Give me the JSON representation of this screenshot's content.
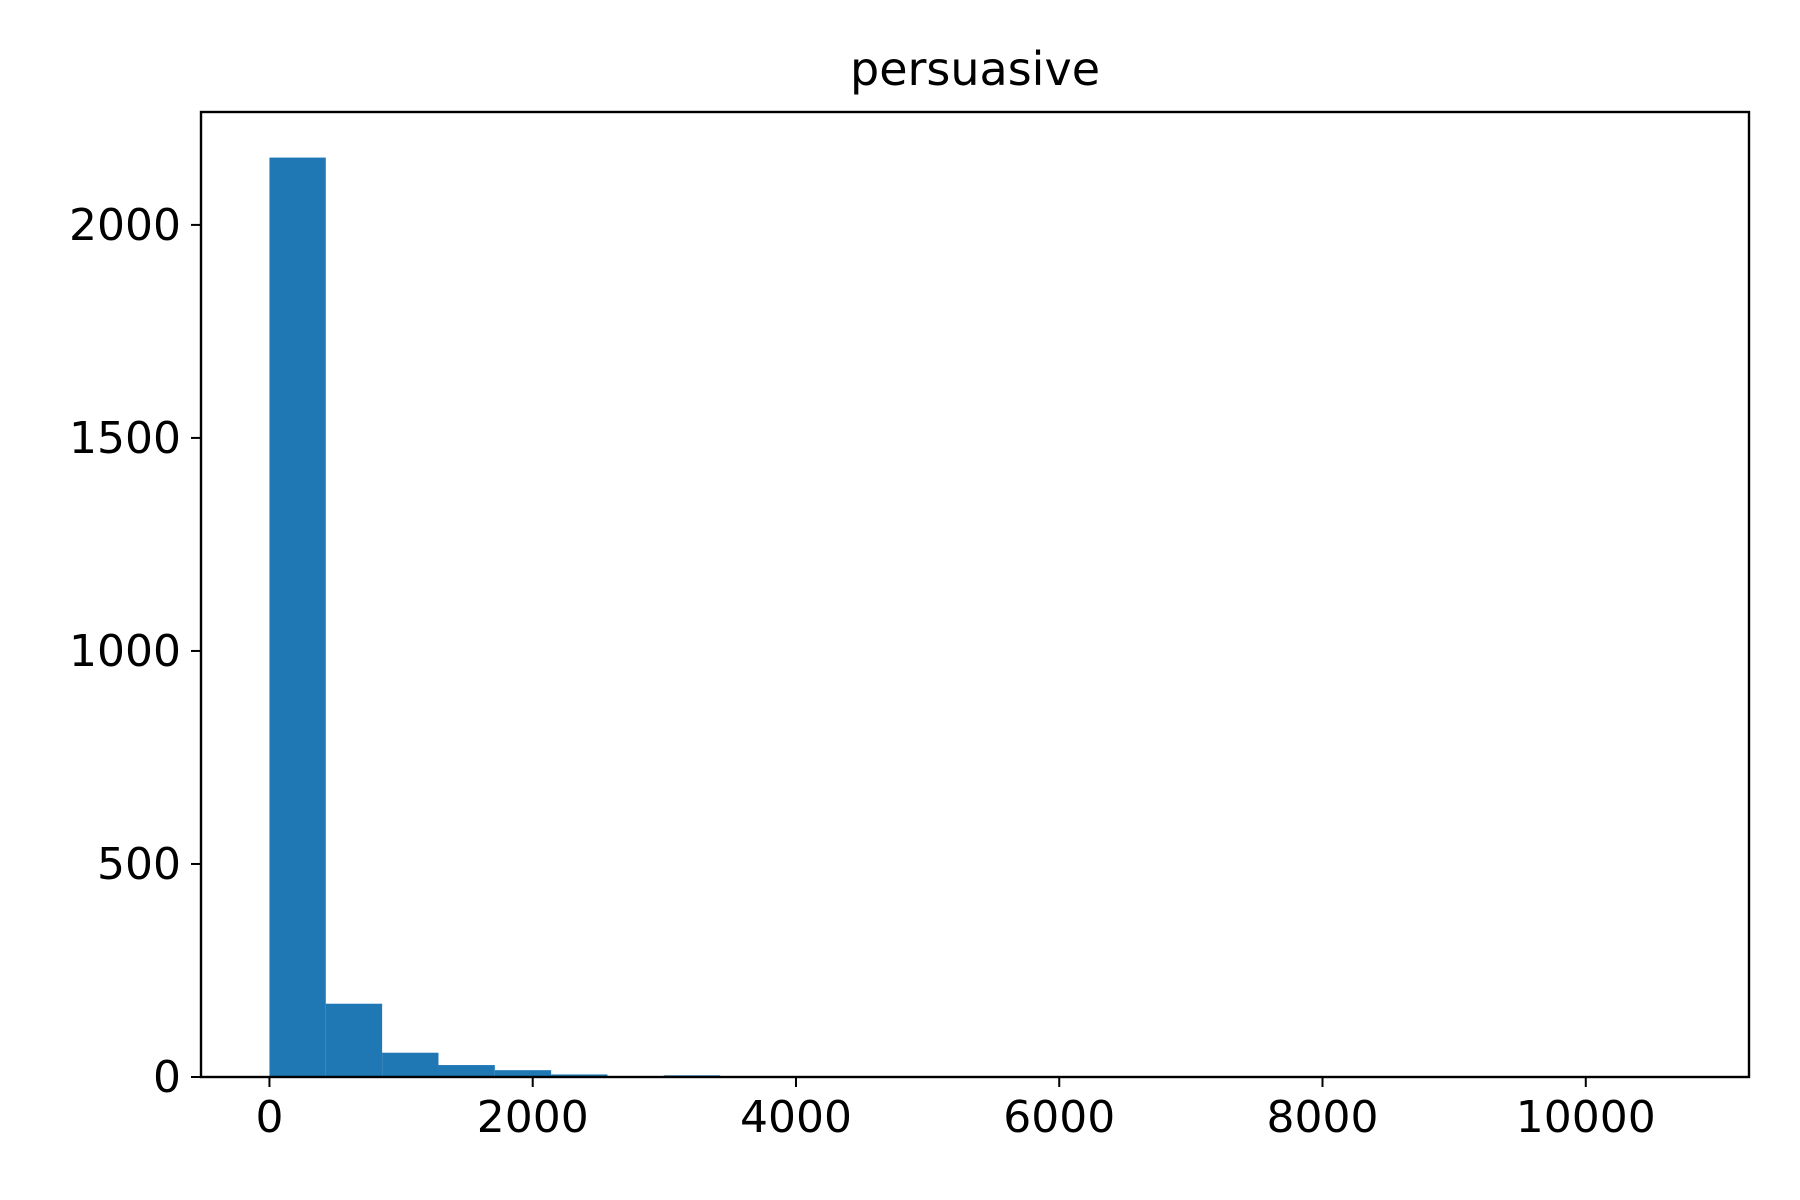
{
  "chart_data": {
    "type": "bar",
    "title": "persuasive",
    "xlabel": "",
    "ylabel": "",
    "bar_color": "#1f77b4",
    "xlim": [
      -520,
      11240
    ],
    "ylim": [
      0,
      2265
    ],
    "x_ticks": [
      0,
      2000,
      4000,
      6000,
      8000,
      10000
    ],
    "x_tick_labels": [
      "0",
      "2000",
      "4000",
      "6000",
      "8000",
      "10000"
    ],
    "y_ticks": [
      0,
      500,
      1000,
      1500,
      2000
    ],
    "y_tick_labels": [
      "0",
      "500",
      "1000",
      "1500",
      "2000"
    ],
    "bins": [
      {
        "x0": 0,
        "x1": 428,
        "count": 2158
      },
      {
        "x0": 428,
        "x1": 856,
        "count": 172
      },
      {
        "x0": 856,
        "x1": 1284,
        "count": 57
      },
      {
        "x0": 1284,
        "x1": 1712,
        "count": 28
      },
      {
        "x0": 1712,
        "x1": 2140,
        "count": 16
      },
      {
        "x0": 2140,
        "x1": 2568,
        "count": 6
      },
      {
        "x0": 2568,
        "x1": 2996,
        "count": 2
      },
      {
        "x0": 2996,
        "x1": 3424,
        "count": 4
      },
      {
        "x0": 3424,
        "x1": 3852,
        "count": 1
      },
      {
        "x0": 3852,
        "x1": 4280,
        "count": 1
      },
      {
        "x0": 4280,
        "x1": 4708,
        "count": 0
      },
      {
        "x0": 4708,
        "x1": 5136,
        "count": 0
      },
      {
        "x0": 5136,
        "x1": 5564,
        "count": 0
      },
      {
        "x0": 5564,
        "x1": 5992,
        "count": 0
      },
      {
        "x0": 5992,
        "x1": 6420,
        "count": 0
      },
      {
        "x0": 6420,
        "x1": 6848,
        "count": 0
      },
      {
        "x0": 6848,
        "x1": 7276,
        "count": 0
      },
      {
        "x0": 7276,
        "x1": 7704,
        "count": 0
      },
      {
        "x0": 7704,
        "x1": 8132,
        "count": 0
      },
      {
        "x0": 8132,
        "x1": 8560,
        "count": 0
      },
      {
        "x0": 8560,
        "x1": 8988,
        "count": 0
      },
      {
        "x0": 8988,
        "x1": 9416,
        "count": 0
      },
      {
        "x0": 9416,
        "x1": 9844,
        "count": 0
      },
      {
        "x0": 9844,
        "x1": 10272,
        "count": 0
      },
      {
        "x0": 10272,
        "x1": 10700,
        "count": 1
      }
    ],
    "grid": false,
    "legend": "none"
  }
}
